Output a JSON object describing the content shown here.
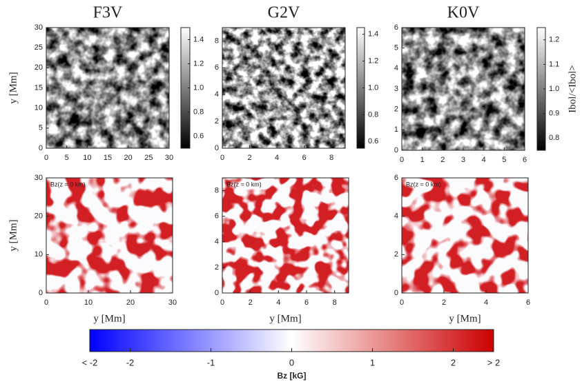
{
  "chart_data": [
    {
      "type": "image",
      "title": "F3V",
      "ylabel": "y [Mm]",
      "xlim": [
        0,
        30
      ],
      "ylim": [
        0,
        30
      ],
      "xticks": [
        0,
        5,
        10,
        15,
        20,
        25,
        30
      ],
      "yticks": [
        0,
        5,
        10,
        15,
        20,
        25,
        30
      ],
      "colorbar": {
        "lim": [
          0.5,
          1.5
        ],
        "ticks": [
          0.6,
          0.8,
          {
            "value": 1,
            "label": "1.0"
          },
          1.2,
          1.4
        ]
      }
    },
    {
      "type": "image",
      "title": "G2V",
      "xlim": [
        0,
        9
      ],
      "ylim": [
        0,
        9
      ],
      "xticks": [
        0,
        2,
        4,
        6,
        8
      ],
      "yticks": [
        0,
        2,
        4,
        6,
        8
      ],
      "colorbar": {
        "lim": [
          0.55,
          1.45
        ],
        "ticks": [
          0.6,
          0.8,
          {
            "value": 1,
            "label": "1.0"
          },
          1.2,
          1.4
        ]
      }
    },
    {
      "type": "image",
      "title": "K0V",
      "xlim": [
        0,
        6
      ],
      "ylim": [
        0,
        6
      ],
      "xticks": [
        0,
        1,
        2,
        3,
        4,
        5,
        6
      ],
      "yticks": [
        0,
        1,
        2,
        3,
        4,
        5,
        6
      ],
      "colorbar": {
        "lim": [
          0.75,
          1.25
        ],
        "label": "Ibol/<Ibol>",
        "ticks": [
          0.8,
          0.9,
          {
            "value": 1,
            "label": "1.0"
          },
          1.1,
          1.2
        ]
      }
    },
    {
      "type": "field",
      "annotation": "Bz(z = 0 km)",
      "xlabel": "y [Mm]",
      "ylabel": "y [Mm]",
      "xlim": [
        0,
        30
      ],
      "ylim": [
        0,
        30
      ],
      "xticks": [
        0,
        10,
        20,
        30
      ],
      "yticks": [
        0,
        10,
        20,
        30
      ]
    },
    {
      "type": "field",
      "annotation": "Bz(z = 0 km)",
      "xlabel": "y [Mm]",
      "xlim": [
        0,
        9
      ],
      "ylim": [
        0,
        9
      ],
      "xticks": [
        0,
        2,
        4,
        6,
        8
      ],
      "yticks": [
        0,
        2,
        4,
        6,
        8
      ]
    },
    {
      "type": "field",
      "annotation": "Bz(z = 0 km)",
      "xlabel": "y [Mm]",
      "xlim": [
        0,
        6
      ],
      "ylim": [
        0,
        6
      ],
      "xticks": [
        0,
        2,
        4,
        6
      ],
      "yticks": [
        0,
        2,
        4,
        6
      ]
    },
    {
      "type": "colorbar",
      "label": "Bz [kG]",
      "lim": [
        -2.5,
        2.5
      ],
      "colors": [
        "#0000ff",
        "#ffffff",
        "#cc0000"
      ],
      "ticks": [
        {
          "value": -2.5,
          "label": "< -2"
        },
        -2,
        -1,
        0,
        1,
        2,
        {
          "value": 2.5,
          "label": "> 2"
        }
      ]
    }
  ]
}
